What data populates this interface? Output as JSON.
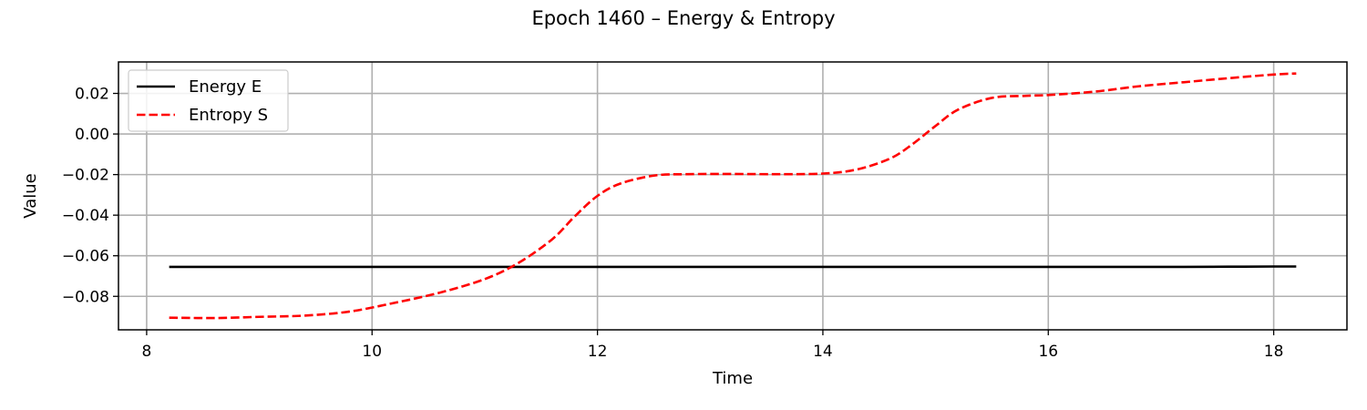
{
  "chart_data": {
    "type": "line",
    "title": "Epoch 1460 – Energy & Entropy",
    "xlabel": "Time",
    "ylabel": "Value",
    "xlim": [
      7.75,
      18.65
    ],
    "ylim": [
      -0.0965,
      0.0355
    ],
    "xticks": [
      8,
      10,
      12,
      14,
      16,
      18
    ],
    "xtick_labels": [
      "8",
      "10",
      "12",
      "14",
      "16",
      "18"
    ],
    "yticks": [
      -0.08,
      -0.06,
      -0.04,
      -0.02,
      0.0,
      0.02
    ],
    "ytick_labels": [
      "−0.08",
      "−0.06",
      "−0.04",
      "−0.02",
      "0.00",
      "0.02"
    ],
    "grid": true,
    "legend_position": "upper-left",
    "series": [
      {
        "name": "Energy E",
        "color": "#000000",
        "style": "solid",
        "x": [
          8.2,
          9,
          10,
          11,
          12,
          13,
          14,
          15,
          16,
          17,
          17.2,
          17.6,
          18,
          18.2
        ],
        "y": [
          -0.0655,
          -0.0655,
          -0.0655,
          -0.0655,
          -0.0655,
          -0.0655,
          -0.0655,
          -0.0655,
          -0.0655,
          -0.0655,
          -0.0655,
          -0.0654,
          -0.0653,
          -0.0653
        ]
      },
      {
        "name": "Entropy S",
        "color": "#ff0000",
        "style": "dashed",
        "x": [
          8.2,
          8.6,
          9.0,
          9.4,
          9.8,
          10.2,
          10.6,
          11.0,
          11.3,
          11.6,
          11.8,
          12.0,
          12.2,
          12.5,
          12.8,
          13.2,
          13.6,
          14.0,
          14.3,
          14.6,
          14.8,
          15.0,
          15.2,
          15.5,
          15.8,
          16.0,
          16.4,
          16.8,
          17.2,
          17.6,
          18.0,
          18.2
        ],
        "y": [
          -0.0905,
          -0.0907,
          -0.0901,
          -0.0895,
          -0.0875,
          -0.0832,
          -0.0782,
          -0.0715,
          -0.0635,
          -0.0518,
          -0.0405,
          -0.0305,
          -0.0245,
          -0.0205,
          -0.0198,
          -0.0197,
          -0.0198,
          -0.0195,
          -0.0175,
          -0.012,
          -0.0048,
          0.004,
          0.012,
          0.0178,
          0.0188,
          0.0192,
          0.0208,
          0.0235,
          0.0255,
          0.0275,
          0.0293,
          0.0298
        ]
      }
    ]
  }
}
